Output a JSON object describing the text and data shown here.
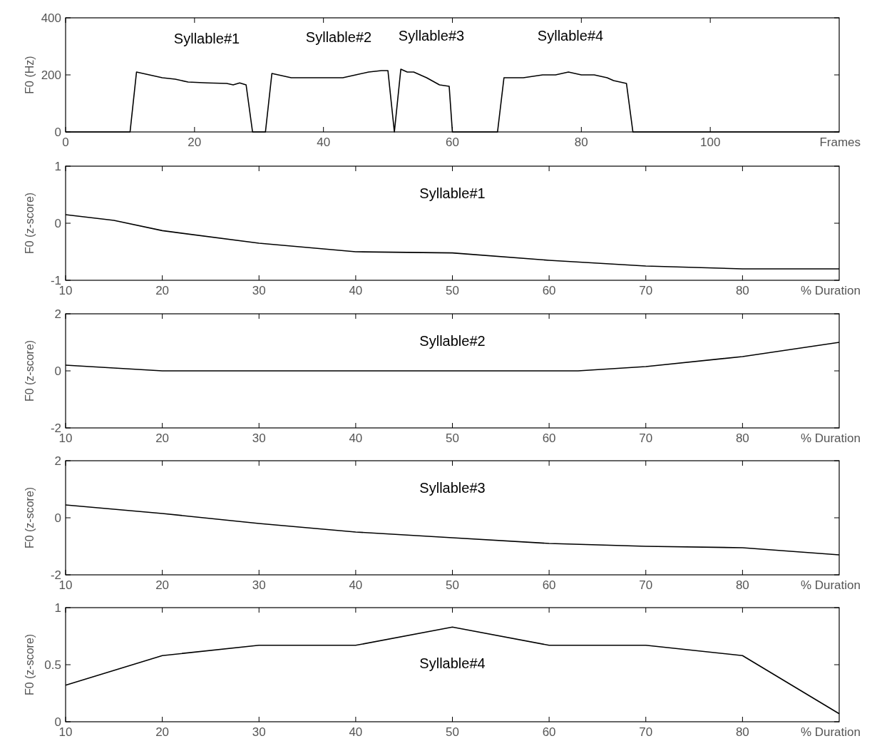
{
  "chart_data": [
    {
      "type": "line",
      "ylabel": "F0 (Hz)",
      "xlabel": "Frames",
      "xlim": [
        0,
        120
      ],
      "xticks": [
        0,
        20,
        40,
        60,
        80,
        100
      ],
      "ylim": [
        0,
        400
      ],
      "yticks": [
        0,
        200,
        400
      ],
      "grid": false,
      "marker": "none",
      "line_style": "solid",
      "annotations": [
        "Syllable#1",
        "Syllable#2",
        "Syllable#3",
        "Syllable#4"
      ],
      "series": [
        {
          "color": "#000000",
          "x": [
            0,
            10,
            11,
            13,
            15,
            17,
            19,
            22,
            25,
            26,
            27,
            28,
            29,
            31,
            32,
            33,
            35,
            40,
            43,
            45,
            47,
            49,
            50,
            51,
            52,
            53,
            54,
            56,
            58,
            59.5,
            60,
            67,
            68,
            71,
            74,
            76,
            78,
            80,
            82,
            84,
            85,
            87,
            88,
            120
          ],
          "values": [
            0,
            0,
            210,
            200,
            190,
            185,
            175,
            172,
            170,
            165,
            172,
            165,
            0,
            0,
            205,
            200,
            190,
            190,
            190,
            200,
            210,
            215,
            215,
            0,
            220,
            210,
            210,
            190,
            165,
            160,
            0,
            0,
            190,
            190,
            200,
            200,
            210,
            200,
            200,
            190,
            180,
            170,
            0,
            0
          ]
        }
      ]
    },
    {
      "type": "line",
      "title": "Syllable#1",
      "ylabel": "F0 (z-score)",
      "xlabel": "% Duration",
      "xlim": [
        10,
        90
      ],
      "xticks": [
        10,
        20,
        30,
        40,
        50,
        60,
        70,
        80
      ],
      "ylim": [
        -1,
        1
      ],
      "yticks": [
        -1,
        0,
        1
      ],
      "grid": false,
      "marker": "none",
      "line_style": "solid",
      "series": [
        {
          "color": "#000000",
          "x": [
            10,
            15,
            20,
            30,
            40,
            50,
            60,
            70,
            80,
            90
          ],
          "values": [
            0.15,
            0.05,
            -0.13,
            -0.35,
            -0.5,
            -0.52,
            -0.65,
            -0.75,
            -0.8,
            -0.8
          ]
        }
      ]
    },
    {
      "type": "line",
      "title": "Syllable#2",
      "ylabel": "F0 (z-score)",
      "xlabel": "% Duration",
      "xlim": [
        10,
        90
      ],
      "xticks": [
        10,
        20,
        30,
        40,
        50,
        60,
        70,
        80
      ],
      "ylim": [
        -2,
        2
      ],
      "yticks": [
        -2,
        0,
        2
      ],
      "grid": false,
      "marker": "none",
      "line_style": "solid",
      "series": [
        {
          "color": "#000000",
          "x": [
            10,
            15,
            20,
            63,
            70,
            80,
            90
          ],
          "values": [
            0.2,
            0.1,
            0,
            0,
            0.15,
            0.5,
            1.0
          ]
        }
      ]
    },
    {
      "type": "line",
      "title": "Syllable#3",
      "ylabel": "F0 (z-score)",
      "xlabel": "% Duration",
      "xlim": [
        10,
        90
      ],
      "xticks": [
        10,
        20,
        30,
        40,
        50,
        60,
        70,
        80
      ],
      "ylim": [
        -2,
        2
      ],
      "yticks": [
        -2,
        0,
        2
      ],
      "grid": false,
      "marker": "none",
      "line_style": "solid",
      "series": [
        {
          "color": "#000000",
          "x": [
            10,
            20,
            30,
            40,
            50,
            60,
            70,
            80,
            90
          ],
          "values": [
            0.45,
            0.15,
            -0.2,
            -0.5,
            -0.7,
            -0.9,
            -1.0,
            -1.05,
            -1.3
          ]
        }
      ]
    },
    {
      "type": "line",
      "title": "Syllable#4",
      "ylabel": "F0 (z-score)",
      "xlabel": "% Duration",
      "xlim": [
        10,
        90
      ],
      "xticks": [
        10,
        20,
        30,
        40,
        50,
        60,
        70,
        80
      ],
      "ylim": [
        0,
        1
      ],
      "yticks": [
        0,
        0.5,
        1
      ],
      "grid": false,
      "marker": "none",
      "line_style": "solid",
      "series": [
        {
          "color": "#000000",
          "x": [
            10,
            20,
            30,
            40,
            50,
            60,
            70,
            80,
            90
          ],
          "values": [
            0.32,
            0.58,
            0.67,
            0.67,
            0.83,
            0.67,
            0.67,
            0.58,
            0.07
          ]
        }
      ]
    }
  ]
}
